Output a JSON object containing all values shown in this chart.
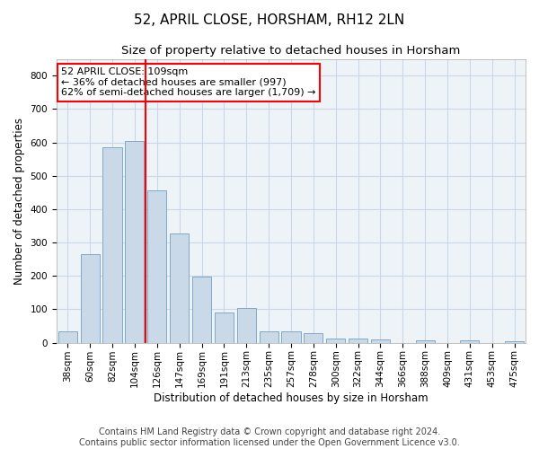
{
  "title": "52, APRIL CLOSE, HORSHAM, RH12 2LN",
  "subtitle": "Size of property relative to detached houses in Horsham",
  "xlabel": "Distribution of detached houses by size in Horsham",
  "ylabel": "Number of detached properties",
  "footer_line1": "Contains HM Land Registry data © Crown copyright and database right 2024.",
  "footer_line2": "Contains public sector information licensed under the Open Government Licence v3.0.",
  "categories": [
    "38sqm",
    "60sqm",
    "82sqm",
    "104sqm",
    "126sqm",
    "147sqm",
    "169sqm",
    "191sqm",
    "213sqm",
    "235sqm",
    "257sqm",
    "278sqm",
    "300sqm",
    "322sqm",
    "344sqm",
    "366sqm",
    "388sqm",
    "409sqm",
    "431sqm",
    "453sqm",
    "475sqm"
  ],
  "values": [
    35,
    265,
    585,
    605,
    455,
    327,
    197,
    90,
    103,
    35,
    33,
    30,
    12,
    12,
    9,
    0,
    8,
    0,
    8,
    0,
    5
  ],
  "bar_color": "#c9d9e8",
  "bar_edge_color": "#7fa8c9",
  "grid_color": "#c8d8e8",
  "bg_color": "#eef3f8",
  "vline_color": "red",
  "annotation_text": "52 APRIL CLOSE: 109sqm\n← 36% of detached houses are smaller (997)\n62% of semi-detached houses are larger (1,709) →",
  "annotation_box_color": "white",
  "annotation_box_edge_color": "red",
  "ylim": [
    0,
    850
  ],
  "yticks": [
    0,
    100,
    200,
    300,
    400,
    500,
    600,
    700,
    800
  ],
  "title_fontsize": 11,
  "subtitle_fontsize": 9.5,
  "axis_label_fontsize": 8.5,
  "tick_fontsize": 7.5,
  "annotation_fontsize": 8,
  "footer_fontsize": 7
}
